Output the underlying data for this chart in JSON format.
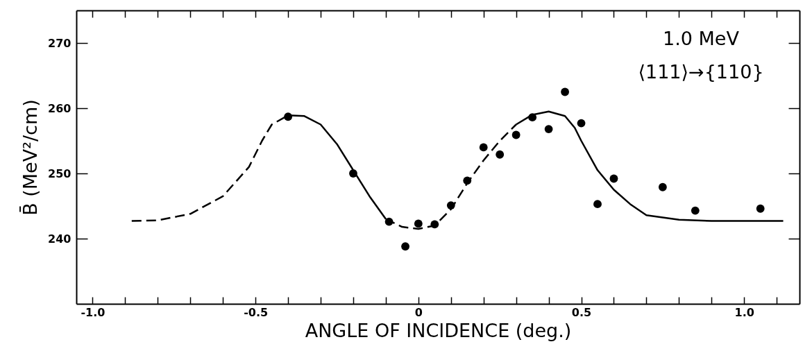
{
  "chart_data": {
    "type": "scatter",
    "xlabel": "ANGLE OF INCIDENCE (deg.)",
    "ylabel": "B̄ (MeV²/cm)",
    "annotations": [
      "1.0 MeV",
      "⟨111⟩→{110}"
    ],
    "xlim": [
      -1.05,
      1.17
    ],
    "ylim": [
      230,
      275
    ],
    "xticks": [
      {
        "value": -1,
        "label": "-1.0"
      },
      {
        "value": -0.9,
        "label": null
      },
      {
        "value": -0.8,
        "label": null
      },
      {
        "value": -0.7,
        "label": null
      },
      {
        "value": -0.6,
        "label": null
      },
      {
        "value": -0.5,
        "label": "-0.5"
      },
      {
        "value": -0.4,
        "label": null
      },
      {
        "value": -0.3,
        "label": null
      },
      {
        "value": -0.2,
        "label": null
      },
      {
        "value": -0.1,
        "label": null
      },
      0,
      {
        "value": 0.1,
        "label": null
      },
      {
        "value": 0.2,
        "label": null
      },
      {
        "value": 0.3,
        "label": null
      },
      {
        "value": 0.4,
        "label": null
      },
      0.5,
      {
        "value": 0.6,
        "label": null
      },
      {
        "value": 0.7,
        "label": null
      },
      {
        "value": 0.8,
        "label": null
      },
      {
        "value": 0.9,
        "label": null
      },
      {
        "value": 1,
        "label": "1.0"
      },
      {
        "value": 1.1,
        "label": null
      }
    ],
    "yticks": [
      240,
      250,
      260,
      270
    ],
    "grid": false,
    "marker": "circle",
    "series": [
      {
        "color": "#000000",
        "x": [
          -0.4,
          -0.2,
          -0.09,
          -0.04,
          0,
          0.05,
          0.1,
          0.15,
          0.2,
          0.25,
          0.3,
          0.35,
          0.4,
          0.45,
          0.5,
          0.55,
          0.6,
          0.75,
          0.85,
          1.05
        ],
        "values": [
          258.7,
          250,
          242.6,
          238.8,
          242.3,
          242.2,
          245.1,
          248.9,
          254,
          252.9,
          255.9,
          258.6,
          256.8,
          262.5,
          257.7,
          245.3,
          249.2,
          247.9,
          244.3,
          244.6
        ]
      },
      {
        "type": "line",
        "marker": "none",
        "line_style": "dashed",
        "color": "#000000",
        "x": [
          -0.88,
          -0.8,
          -0.7,
          -0.6,
          -0.52,
          -0.48,
          -0.45,
          -0.4
        ],
        "values": [
          242.7,
          242.8,
          243.8,
          246.5,
          251,
          255,
          257.5,
          258.9
        ]
      },
      {
        "type": "line",
        "marker": "none",
        "line_style": "solid",
        "color": "#000000",
        "x": [
          -0.4,
          -0.35,
          -0.3,
          -0.25,
          -0.2,
          -0.15,
          -0.1
        ],
        "values": [
          258.9,
          258.8,
          257.5,
          254.5,
          250.5,
          246.5,
          243
        ]
      },
      {
        "type": "line",
        "marker": "none",
        "line_style": "dashed",
        "color": "#000000",
        "x": [
          -0.1,
          -0.05,
          0,
          0.05,
          0.1,
          0.15,
          0.2,
          0.25,
          0.3
        ],
        "values": [
          243,
          241.8,
          241.5,
          242,
          244.5,
          248.5,
          252,
          255,
          257.5
        ]
      },
      {
        "type": "line",
        "marker": "none",
        "line_style": "solid",
        "color": "#000000",
        "x": [
          0.3,
          0.35,
          0.4,
          0.45,
          0.48,
          0.5,
          0.55,
          0.6,
          0.65,
          0.7,
          0.8,
          0.9,
          1.0,
          1.12
        ],
        "values": [
          257.5,
          259,
          259.5,
          258.8,
          257,
          255,
          250.5,
          247.5,
          245.3,
          243.6,
          242.9,
          242.7,
          242.7,
          242.7
        ]
      }
    ]
  }
}
